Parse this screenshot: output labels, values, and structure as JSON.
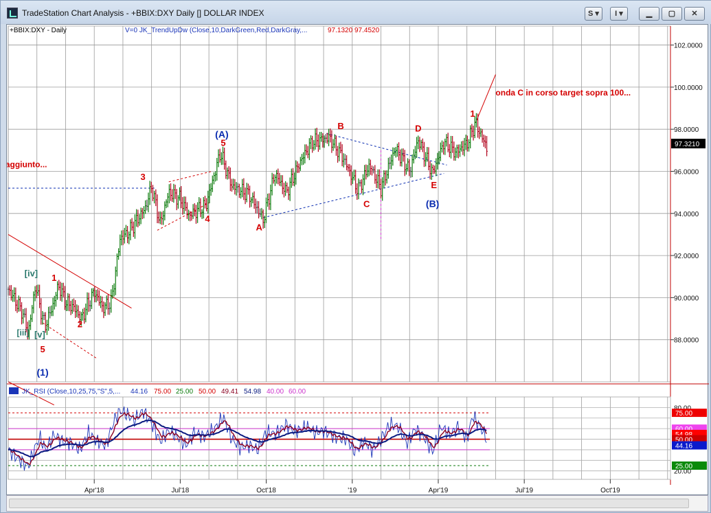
{
  "window": {
    "title": "TradeStation Chart Analysis - +BBIX:DXY Daily [] DOLLAR INDEX",
    "buttons": {
      "s_label": "S",
      "i_label": "I"
    }
  },
  "colors": {
    "up_bar": "#0a7a0a",
    "down_bar": "#b0001a",
    "neutral_bar": "#555555",
    "wave_red": "#d40000",
    "wave_blue": "#0a2cb0",
    "wave_teal": "#2c7a6e",
    "grid": "#9a9a9a",
    "rsi_line": "#1a35b8",
    "rsi_signal": "#8a0020",
    "rsi_slow": "#0a1a80"
  },
  "chart_data": [
    {
      "type": "candlestick",
      "symbol_label": "+BBIX:DXY - Daily",
      "indicator_label": "V=0  JK_TrendUpDw (Close,10,DarkGreen,Red,DarkGray,...",
      "indicator_values": [
        "97.1320",
        "97.4520"
      ],
      "y_ticks": [
        "102.0000",
        "100.0000",
        "98.0000",
        "96.0000",
        "94.0000",
        "92.0000",
        "90.0000",
        "88.0000"
      ],
      "y_tick_values": [
        102,
        100,
        98,
        96,
        94,
        92,
        90,
        88
      ],
      "ylim": [
        86.0,
        102.9
      ],
      "current_price": "97.3210",
      "x_ticks": [
        "Apr'18",
        "Jul'18",
        "Oct'18",
        "'19",
        "Apr'19",
        "Jul'19",
        "Oct'19"
      ],
      "x_tick_values": [
        3.0,
        6.0,
        9.0,
        12.0,
        15.0,
        18.0,
        21.0
      ],
      "xlim": [
        0,
        23.1
      ],
      "price_path": [
        [
          0.0,
          90.4
        ],
        [
          0.5,
          89.3
        ],
        [
          0.7,
          88.3
        ],
        [
          0.95,
          90.6
        ],
        [
          1.2,
          89.0
        ],
        [
          1.3,
          88.7
        ],
        [
          1.55,
          89.6
        ],
        [
          1.75,
          90.6
        ],
        [
          2.0,
          89.8
        ],
        [
          2.3,
          89.5
        ],
        [
          2.55,
          89.0
        ],
        [
          3.0,
          90.3
        ],
        [
          3.3,
          89.5
        ],
        [
          3.6,
          89.8
        ],
        [
          3.9,
          92.8
        ],
        [
          4.2,
          93.1
        ],
        [
          4.8,
          94.3
        ],
        [
          5.0,
          95.3
        ],
        [
          5.3,
          93.5
        ],
        [
          5.6,
          95.0
        ],
        [
          6.0,
          94.7
        ],
        [
          6.3,
          93.9
        ],
        [
          6.9,
          94.4
        ],
        [
          7.4,
          96.9
        ],
        [
          7.8,
          95.3
        ],
        [
          8.4,
          94.9
        ],
        [
          8.9,
          93.7
        ],
        [
          9.3,
          95.9
        ],
        [
          9.7,
          95.0
        ],
        [
          10.2,
          96.5
        ],
        [
          10.6,
          97.4
        ],
        [
          11.2,
          97.6
        ],
        [
          11.7,
          96.6
        ],
        [
          12.2,
          95.1
        ],
        [
          12.6,
          96.3
        ],
        [
          13.0,
          95.2
        ],
        [
          13.5,
          97.1
        ],
        [
          14.0,
          96.0
        ],
        [
          14.3,
          97.5
        ],
        [
          14.8,
          95.9
        ],
        [
          15.2,
          97.4
        ],
        [
          15.6,
          96.9
        ],
        [
          16.0,
          97.3
        ],
        [
          16.3,
          98.3
        ],
        [
          16.7,
          97.1
        ]
      ],
      "annotations": [
        {
          "text": "onda C in corso  target sopra 100...",
          "x": 17.0,
          "y": 99.6,
          "color": "#d40000"
        },
        {
          "text": "aggiunto...",
          "x": -0.1,
          "y": 96.2,
          "color": "#d40000"
        },
        {
          "text": "1",
          "x": 16.2,
          "y": 98.6,
          "color": "#d40000"
        },
        {
          "text": "D",
          "x": 14.3,
          "y": 97.9,
          "color": "#d40000"
        },
        {
          "text": "B",
          "x": 11.6,
          "y": 98.0,
          "color": "#d40000"
        },
        {
          "text": "(A)",
          "x": 7.45,
          "y": 97.6,
          "color": "#0a2cb0"
        },
        {
          "text": "5",
          "x": 7.5,
          "y": 97.2,
          "color": "#d40000"
        },
        {
          "text": "3",
          "x": 4.7,
          "y": 95.6,
          "color": "#d40000"
        },
        {
          "text": "4",
          "x": 6.95,
          "y": 93.6,
          "color": "#d40000"
        },
        {
          "text": "A",
          "x": 8.75,
          "y": 93.2,
          "color": "#d40000"
        },
        {
          "text": "C",
          "x": 12.5,
          "y": 94.3,
          "color": "#d40000"
        },
        {
          "text": "E",
          "x": 14.85,
          "y": 95.2,
          "color": "#d40000"
        },
        {
          "text": "(B)",
          "x": 14.8,
          "y": 94.3,
          "color": "#0a2cb0"
        },
        {
          "text": "[iv]",
          "x": 0.8,
          "y": 91.0,
          "color": "#2c7a6e"
        },
        {
          "text": "1",
          "x": 1.6,
          "y": 90.8,
          "color": "#d40000"
        },
        {
          "text": "2",
          "x": 2.5,
          "y": 88.6,
          "color": "#d40000"
        },
        {
          "text": "[iii]",
          "x": 0.3,
          "y": 88.2,
          "color": "#2c7a6e"
        },
        {
          "text": "[v]",
          "x": 1.1,
          "y": 88.1,
          "color": "#2c7a6e"
        },
        {
          "text": "5",
          "x": 1.2,
          "y": 87.4,
          "color": "#d40000"
        },
        {
          "text": "(1)",
          "x": 1.2,
          "y": 86.3,
          "color": "#0a2cb0"
        }
      ]
    },
    {
      "type": "line",
      "indicator_label": "JK_RSI (Close,10,25,75,\"S\",5,...",
      "values": [
        "44.16",
        "75.00",
        "25.00",
        "50.00",
        "49.41",
        "54.98",
        "40.00",
        "60.00"
      ],
      "y_ticks": [
        "80.00",
        "20.00"
      ],
      "y_tick_values": [
        80,
        20
      ],
      "ylim": [
        12,
        90
      ],
      "levels": [
        75,
        60,
        50,
        40,
        25
      ],
      "right_labels": [
        "75.00",
        "60.00",
        "54.98",
        "50.00",
        "44.16",
        "25.00"
      ],
      "rsi_path": [
        [
          0.0,
          40
        ],
        [
          0.4,
          30
        ],
        [
          0.7,
          24
        ],
        [
          0.9,
          40
        ],
        [
          1.1,
          52
        ],
        [
          1.3,
          40
        ],
        [
          1.6,
          54
        ],
        [
          1.9,
          48
        ],
        [
          2.2,
          46
        ],
        [
          2.5,
          40
        ],
        [
          2.8,
          56
        ],
        [
          3.1,
          48
        ],
        [
          3.4,
          44
        ],
        [
          3.7,
          68
        ],
        [
          3.9,
          77
        ],
        [
          4.1,
          74
        ],
        [
          4.4,
          68
        ],
        [
          4.7,
          77
        ],
        [
          5.0,
          65
        ],
        [
          5.3,
          48
        ],
        [
          5.6,
          58
        ],
        [
          5.9,
          52
        ],
        [
          6.2,
          44
        ],
        [
          6.5,
          57
        ],
        [
          6.8,
          52
        ],
        [
          7.2,
          60
        ],
        [
          7.5,
          71
        ],
        [
          7.8,
          50
        ],
        [
          8.1,
          42
        ],
        [
          8.4,
          44
        ],
        [
          8.7,
          40
        ],
        [
          9.0,
          57
        ],
        [
          9.3,
          55
        ],
        [
          9.7,
          64
        ],
        [
          10.0,
          57
        ],
        [
          10.4,
          62
        ],
        [
          10.7,
          56
        ],
        [
          11.0,
          58
        ],
        [
          11.4,
          52
        ],
        [
          11.8,
          50
        ],
        [
          12.1,
          38
        ],
        [
          12.4,
          48
        ],
        [
          12.7,
          40
        ],
        [
          13.0,
          50
        ],
        [
          13.3,
          64
        ],
        [
          13.6,
          62
        ],
        [
          13.9,
          46
        ],
        [
          14.2,
          60
        ],
        [
          14.5,
          52
        ],
        [
          14.8,
          38
        ],
        [
          15.1,
          62
        ],
        [
          15.4,
          54
        ],
        [
          15.7,
          62
        ],
        [
          16.0,
          50
        ],
        [
          16.2,
          72
        ],
        [
          16.5,
          60
        ],
        [
          16.7,
          50
        ]
      ]
    }
  ]
}
